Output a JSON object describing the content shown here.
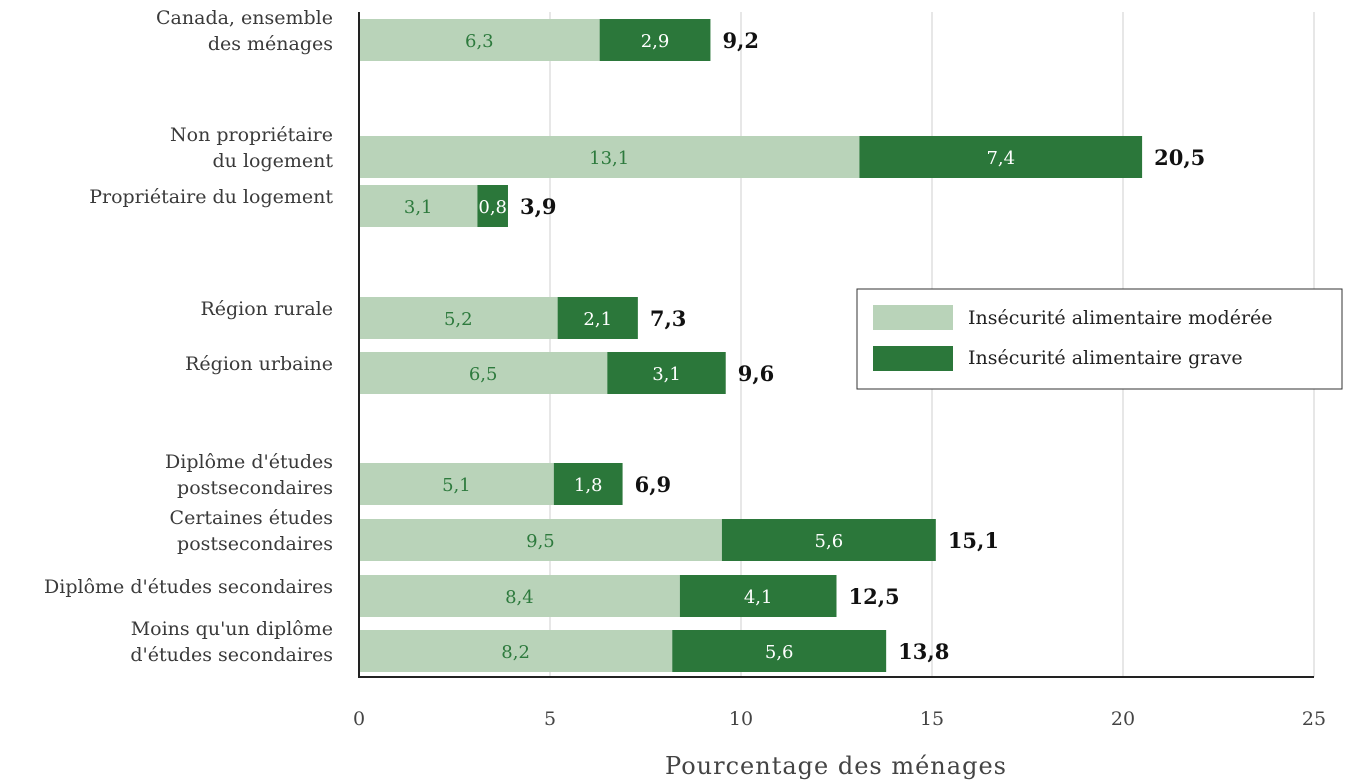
{
  "chart_data": {
    "type": "bar",
    "orientation": "horizontal",
    "stacked": true,
    "categories": [
      [
        "Canada, ensemble",
        "des ménages"
      ],
      [
        "Non propriétaire",
        "du logement"
      ],
      [
        "Propriétaire du logement"
      ],
      [
        "Région rurale"
      ],
      [
        "Région urbaine"
      ],
      [
        "Diplôme d'études",
        "postsecondaires"
      ],
      [
        "Certaines études",
        "postsecondaires"
      ],
      [
        "Diplôme d'études secondaires"
      ],
      [
        "Moins qu'un diplôme",
        "d'études secondaires"
      ]
    ],
    "series": [
      {
        "name": "Insécurité alimentaire modérée",
        "color": "#b9d3b9",
        "label_color": "#2d7a3d",
        "values": [
          6.3,
          13.1,
          3.1,
          5.2,
          6.5,
          5.1,
          9.5,
          8.4,
          8.2
        ],
        "labels": [
          "6,3",
          "13,1",
          "3,1",
          "5,2",
          "6,5",
          "5,1",
          "9,5",
          "8,4",
          "8,2"
        ]
      },
      {
        "name": "Insécurité alimentaire grave",
        "color": "#2b773a",
        "label_color": "#ffffff",
        "values": [
          2.9,
          7.4,
          0.8,
          2.1,
          3.1,
          1.8,
          5.6,
          4.1,
          5.6
        ],
        "labels": [
          "2,9",
          "7,4",
          "0,8",
          "2,1",
          "3,1",
          "1,8",
          "5,6",
          "4,1",
          "5,6"
        ]
      }
    ],
    "totals": [
      9.2,
      20.5,
      3.9,
      7.3,
      9.6,
      6.9,
      15.1,
      12.5,
      13.8
    ],
    "total_labels": [
      "9,2",
      "20,5",
      "3,9",
      "7,3",
      "9,6",
      "6,9",
      "15,1",
      "12,5",
      "13,8"
    ],
    "groups": [
      [
        0
      ],
      [
        1,
        2
      ],
      [
        3,
        4
      ],
      [
        5,
        6,
        7,
        8
      ]
    ],
    "xlim": [
      0,
      25
    ],
    "xticks": [
      0,
      5,
      10,
      15,
      20,
      25
    ],
    "xtick_labels": [
      "0",
      "5",
      "10",
      "15",
      "20",
      "25"
    ],
    "xlabel": "Pourcentage des ménages",
    "ylabel": "",
    "title": "",
    "grid": true,
    "legend_position": "right"
  }
}
